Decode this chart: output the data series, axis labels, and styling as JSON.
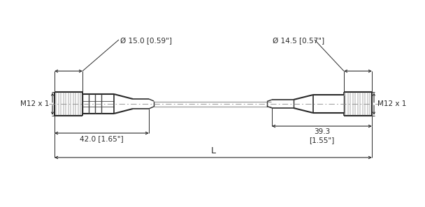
{
  "bg_color": "#ffffff",
  "lc": "#2a2a2a",
  "dc": "#2a2a2a",
  "centerline_color": "#888888",
  "cable_color": "#999999",
  "left_connector": {
    "label": "M12 x 1",
    "diameter_label": "Ø 15.0 [0.59\"]",
    "length_label": "42.0 [1.65\"]"
  },
  "right_connector": {
    "label": "M12 x 1",
    "diameter_label": "Ø 14.5 [0.57\"]",
    "length_label": "39.3\n[1.55\"]"
  },
  "overall_label": "L"
}
